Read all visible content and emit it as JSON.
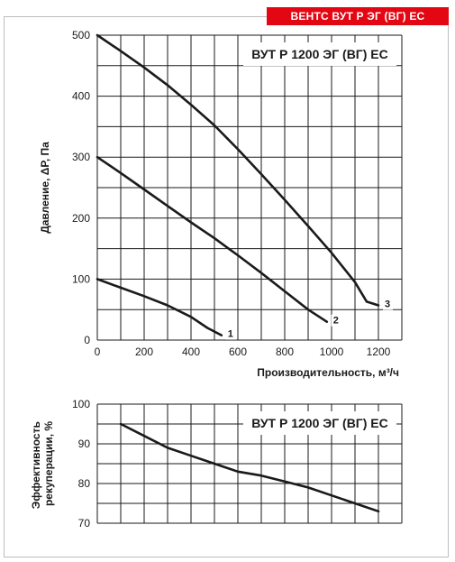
{
  "header": {
    "title": "ВЕНТС ВУТ Р ЭГ (ВГ) ЕС",
    "color": "#e30613"
  },
  "chart_data": [
    {
      "type": "line",
      "model_label": "ВУТ  Р 1200  ЭГ (ВГ)  ЕС",
      "xlabel": "Производительность, м³/ч",
      "ylabel": "Давление, ΔP, Па",
      "xlim": [
        0,
        1300
      ],
      "ylim": [
        0,
        500
      ],
      "x_ticks": [
        0,
        200,
        400,
        600,
        800,
        1000,
        1200
      ],
      "y_ticks": [
        0,
        100,
        200,
        300,
        400,
        500
      ],
      "grid": true,
      "series": [
        {
          "name": "1",
          "points": [
            [
              0,
              100
            ],
            [
              100,
              86
            ],
            [
              200,
              72
            ],
            [
              300,
              57
            ],
            [
              400,
              38
            ],
            [
              470,
              20
            ],
            [
              530,
              8
            ]
          ]
        },
        {
          "name": "2",
          "points": [
            [
              0,
              300
            ],
            [
              100,
              274
            ],
            [
              200,
              247
            ],
            [
              300,
              220
            ],
            [
              400,
              193
            ],
            [
              500,
              167
            ],
            [
              600,
              139
            ],
            [
              700,
              110
            ],
            [
              800,
              80
            ],
            [
              900,
              50
            ],
            [
              980,
              30
            ]
          ]
        },
        {
          "name": "3",
          "points": [
            [
              0,
              500
            ],
            [
              100,
              474
            ],
            [
              200,
              447
            ],
            [
              300,
              418
            ],
            [
              400,
              386
            ],
            [
              500,
              352
            ],
            [
              600,
              313
            ],
            [
              700,
              272
            ],
            [
              800,
              230
            ],
            [
              900,
              187
            ],
            [
              1000,
              143
            ],
            [
              1100,
              95
            ],
            [
              1150,
              63
            ],
            [
              1200,
              57
            ]
          ]
        }
      ]
    },
    {
      "type": "line",
      "model_label": "ВУТ  Р 1200  ЭГ (ВГ)  ЕС",
      "xlabel": "",
      "ylabel": "Эффективность рекуперации, %",
      "xlim": [
        0,
        1300
      ],
      "ylim": [
        70,
        100
      ],
      "y_ticks": [
        70,
        80,
        90,
        100
      ],
      "grid": true,
      "series": [
        {
          "name": "",
          "points": [
            [
              100,
              95
            ],
            [
              200,
              92
            ],
            [
              300,
              89
            ],
            [
              400,
              87
            ],
            [
              500,
              85
            ],
            [
              600,
              83
            ],
            [
              700,
              82
            ],
            [
              800,
              80.5
            ],
            [
              900,
              79
            ],
            [
              1000,
              77
            ],
            [
              1100,
              75
            ],
            [
              1200,
              73
            ]
          ]
        }
      ]
    }
  ]
}
